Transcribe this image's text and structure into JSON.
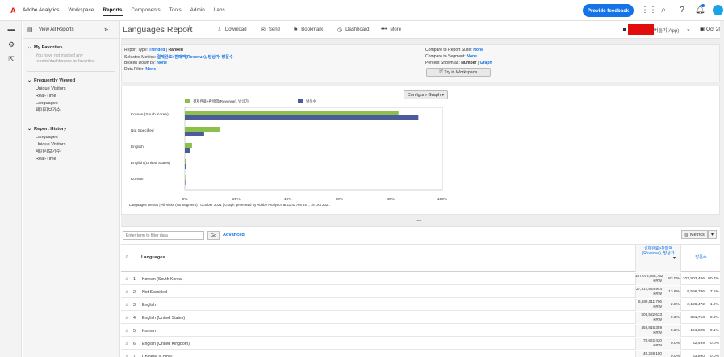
{
  "nav": {
    "brand": "Adobe Analytics",
    "links": [
      "Workspace",
      "Reports",
      "Components",
      "Tools",
      "Admin",
      "Labs"
    ],
    "active": "Reports",
    "feedback_label": "Provide feedback"
  },
  "rail": {
    "icons": [
      "reports-icon",
      "settings-icon",
      "export-icon"
    ]
  },
  "sidebar": {
    "view_all": "View All Reports",
    "favorites": {
      "title": "My Favorites",
      "note": "You have not marked any reports/dashboards as favorites."
    },
    "frequently_viewed": {
      "title": "Frequently Viewed",
      "items": [
        "Unique Visitors",
        "Real-Time",
        "Languages",
        "페이지보기수"
      ]
    },
    "report_history": {
      "title": "Report History",
      "items": [
        "Languages",
        "Unique Visitors",
        "페이지보기수",
        "Real-Time"
      ]
    }
  },
  "titlebar": {
    "title": "Languages Report",
    "tools": [
      "Download",
      "Send",
      "Bookmark",
      "Dashboard",
      "More"
    ],
    "app_label": "버들기(App)",
    "date_label": "Oct 20"
  },
  "info": {
    "report_type_key": "Report Type:",
    "report_type_val": "Trended",
    "report_type_sep": "|",
    "report_type_val2": "Ranked",
    "metrics_key": "Selected Metrics:",
    "metrics_val": "결제완료>판매액(Revenue), 방상가, 방문수",
    "broken_key": "Broken Down by:",
    "broken_val": "None",
    "filter_key": "Data Filter:",
    "filter_val": "None",
    "compare_suite_key": "Compare to Report Suite:",
    "compare_suite_val": "None",
    "compare_segment_key": "Compare to Segment:",
    "compare_segment_val": "None",
    "percent_key": "Percent Shown as:",
    "percent_val": "Number",
    "percent_sep": "|",
    "percent_val2": "Graph",
    "workspace_btn": "Try in Workspace"
  },
  "chart": {
    "configure_label": "Configure Graph",
    "caption": "Languages Report | All Visits (No Segment) | October 2021 | Graph generated by Adobe Analytics at 11:42 AM JST, 18 Oct 2021"
  },
  "chart_data": {
    "type": "bar",
    "orientation": "horizontal",
    "categories": [
      "Korean (South Korea)",
      "Not Specified",
      "English",
      "English (United States)",
      "Korean"
    ],
    "series": [
      {
        "name": "결제완료>판매액(Revenue), 방상가",
        "color": "#8cc04a",
        "values": [
          83.0,
          13.6,
          2.8,
          0.3,
          0.2
        ]
      },
      {
        "name": "방문수",
        "color": "#4b5c9a",
        "values": [
          90.7,
          7.5,
          1.9,
          0.3,
          0.1
        ]
      }
    ],
    "xlim": [
      0,
      100
    ],
    "xticks": [
      "0%",
      "20%",
      "40%",
      "60%",
      "80%",
      "100%"
    ],
    "legend": "top"
  },
  "table": {
    "filter_placeholder": "Enter term to filter data",
    "go_label": "Go",
    "advanced_label": "Advanced",
    "metrics_label": "Metrics",
    "col_dim": "Languages",
    "col_metric1": "결제완료>판매액 (Revenue), 방상가",
    "col_metric2": "방문수",
    "rows": [
      {
        "idx": "1.",
        "name": "Korean (South Korea)",
        "v1": "167,075,568,782 KRW",
        "p1": "83.0%",
        "v2": "103,803,466",
        "p2": "90.7%"
      },
      {
        "idx": "2.",
        "name": "Not Specified",
        "v1": "27,317,864,944 KRW",
        "p1": "13.6%",
        "v2": "8,596,786",
        "p2": "7.5%"
      },
      {
        "idx": "3.",
        "name": "English",
        "v1": "5,689,011,706 KRW",
        "p1": "2.8%",
        "v2": "2,136,472",
        "p2": "1.9%"
      },
      {
        "idx": "4.",
        "name": "English (United States)",
        "v1": "509,582,633 KRW",
        "p1": "0.3%",
        "v2": "381,713",
        "p2": "0.3%"
      },
      {
        "idx": "5.",
        "name": "Korean",
        "v1": "458,815,359 KRW",
        "p1": "0.2%",
        "v2": "161,905",
        "p2": "0.1%"
      },
      {
        "idx": "6.",
        "name": "English (United Kingdom)",
        "v1": "75,622,430 KRW",
        "p1": "0.0%",
        "v2": "52,499",
        "p2": "0.0%"
      },
      {
        "idx": "7.",
        "name": "Chinese (China)",
        "v1": "45,259,180 KRW",
        "p1": "0.0%",
        "v2": "63,890",
        "p2": "0.0%"
      }
    ]
  }
}
